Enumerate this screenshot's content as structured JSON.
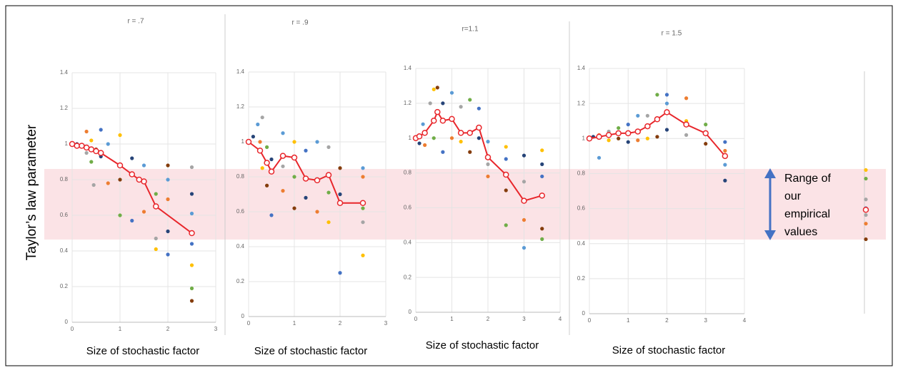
{
  "y_label": "Taylor’s law parameter",
  "annotation_lines": [
    "Range of",
    "our",
    "empirical",
    "values"
  ],
  "chart_data": [
    {
      "type": "scatter",
      "title": "r = .7",
      "x_label": "Size of stochastic factor",
      "xlim": [
        0,
        3
      ],
      "xticks": [
        0,
        1,
        2,
        3
      ],
      "ylim": [
        0,
        1.4
      ],
      "yticks": [
        0,
        0.2,
        0.4,
        0.6,
        0.8,
        1,
        1.2,
        1.4
      ],
      "grid": true,
      "palette": [
        "#264478",
        "#5b9bd5",
        "#ed7d31",
        "#a5a5a5",
        "#ffc000",
        "#70ad47",
        "#843c0c",
        "#4472c4"
      ],
      "points": {
        "x": [
          0.1,
          0.2,
          0.3,
          0.3,
          0.4,
          0.4,
          0.5,
          0.6,
          0.6,
          0.75,
          0.75,
          0.45,
          1,
          1,
          1,
          1.25,
          1.25,
          1.5,
          1.5,
          1.75,
          1.75,
          1.75,
          2,
          2,
          2,
          2,
          2,
          2.5,
          2.5,
          2.5,
          2.5,
          2.5,
          2.5,
          2.5
        ],
        "values": [
          1,
          0.99,
          1.07,
          0.95,
          1.02,
          0.9,
          0.97,
          1.08,
          0.93,
          1,
          0.78,
          0.77,
          1.05,
          0.6,
          0.8,
          0.57,
          0.92,
          0.88,
          0.62,
          0.47,
          0.41,
          0.72,
          0.88,
          0.38,
          0.51,
          0.8,
          0.69,
          0.87,
          0.32,
          0.19,
          0.12,
          0.44,
          0.72,
          0.61
        ]
      },
      "mean": {
        "color": "#e8262b",
        "x": [
          0,
          0.1,
          0.2,
          0.3,
          0.4,
          0.5,
          0.6,
          1,
          1.25,
          1.4,
          1.5,
          1.75,
          2.5
        ],
        "values": [
          1,
          0.99,
          0.99,
          0.98,
          0.97,
          0.96,
          0.95,
          0.88,
          0.83,
          0.8,
          0.79,
          0.65,
          0.5
        ]
      }
    },
    {
      "type": "scatter",
      "title": "r = .9",
      "x_label": "Size of stochastic factor",
      "xlim": [
        0,
        3
      ],
      "xticks": [
        0,
        1,
        2,
        3
      ],
      "ylim": [
        0,
        1.4
      ],
      "yticks": [
        0,
        0.2,
        0.4,
        0.6,
        0.8,
        1,
        1.2,
        1.4
      ],
      "grid": true,
      "palette": [
        "#264478",
        "#5b9bd5",
        "#ed7d31",
        "#a5a5a5",
        "#ffc000",
        "#70ad47",
        "#843c0c",
        "#4472c4"
      ],
      "points": {
        "x": [
          0.1,
          0.2,
          0.25,
          0.3,
          0.3,
          0.4,
          0.4,
          0.5,
          0.5,
          0.75,
          0.75,
          0.75,
          1,
          1,
          1,
          1.25,
          1.25,
          1.5,
          1.5,
          1.75,
          1.75,
          1.75,
          2,
          2,
          2,
          2.5,
          2.5,
          2.5,
          2.5,
          2.5
        ],
        "values": [
          1.03,
          1.1,
          1,
          1.14,
          0.85,
          0.97,
          0.75,
          0.58,
          0.9,
          1.05,
          0.72,
          0.86,
          1,
          0.8,
          0.62,
          0.95,
          0.68,
          1,
          0.6,
          0.97,
          0.54,
          0.71,
          0.85,
          0.25,
          0.7,
          0.85,
          0.8,
          0.54,
          0.35,
          0.62
        ]
      },
      "mean": {
        "color": "#e8262b",
        "x": [
          0,
          0.25,
          0.4,
          0.5,
          0.75,
          1,
          1.25,
          1.5,
          1.75,
          2,
          2.5
        ],
        "values": [
          1,
          0.95,
          0.88,
          0.83,
          0.92,
          0.91,
          0.79,
          0.78,
          0.81,
          0.65,
          0.65
        ]
      }
    },
    {
      "type": "scatter",
      "title": "r=1.1",
      "x_label": "Size of stochastic factor",
      "xlim": [
        0,
        4
      ],
      "xticks": [
        0,
        1,
        2,
        3,
        4
      ],
      "ylim": [
        0,
        1.4
      ],
      "yticks": [
        0,
        0.2,
        0.4,
        0.6,
        0.8,
        1,
        1.2,
        1.4
      ],
      "grid": true,
      "palette": [
        "#264478",
        "#5b9bd5",
        "#ed7d31",
        "#a5a5a5",
        "#ffc000",
        "#70ad47",
        "#843c0c",
        "#4472c4"
      ],
      "points": {
        "x": [
          0.1,
          0.2,
          0.25,
          0.4,
          0.5,
          0.5,
          0.6,
          0.75,
          0.75,
          1,
          1,
          1.25,
          1.25,
          1.5,
          1.5,
          1.75,
          1.75,
          2,
          2,
          2,
          2.5,
          2.5,
          2.5,
          2.5,
          3,
          3,
          3,
          3,
          3.5,
          3.5,
          3.5,
          3.5,
          3.5
        ],
        "values": [
          0.97,
          1.08,
          0.96,
          1.2,
          1.28,
          1,
          1.29,
          0.92,
          1.2,
          1.26,
          1,
          1.18,
          0.98,
          1.22,
          0.92,
          1.17,
          1,
          0.98,
          0.78,
          0.85,
          0.95,
          0.5,
          0.7,
          0.88,
          0.9,
          0.37,
          0.53,
          0.75,
          0.93,
          0.42,
          0.48,
          0.78,
          0.85
        ]
      },
      "mean": {
        "color": "#e8262b",
        "x": [
          0,
          0.1,
          0.25,
          0.5,
          0.6,
          0.75,
          1,
          1.25,
          1.5,
          1.75,
          2,
          2.5,
          3,
          3.5
        ],
        "values": [
          1,
          1.01,
          1.03,
          1.1,
          1.15,
          1.1,
          1.11,
          1.03,
          1.03,
          1.06,
          0.89,
          0.79,
          0.64,
          0.67
        ]
      }
    },
    {
      "type": "scatter",
      "title": "r = 1.5",
      "x_label": "Size of stochastic factor",
      "xlim": [
        0,
        4
      ],
      "xticks": [
        0,
        1,
        2,
        3,
        4
      ],
      "ylim": [
        0,
        1.4
      ],
      "yticks": [
        0,
        0.2,
        0.4,
        0.6,
        0.8,
        1,
        1.2,
        1.4
      ],
      "grid": true,
      "palette": [
        "#264478",
        "#5b9bd5",
        "#ed7d31",
        "#a5a5a5",
        "#ffc000",
        "#70ad47",
        "#843c0c",
        "#4472c4"
      ],
      "points": {
        "x": [
          0.1,
          0.25,
          0.25,
          0.5,
          0.5,
          0.75,
          0.75,
          1,
          1,
          1.25,
          1.25,
          1.5,
          1.5,
          1.75,
          1.75,
          2,
          2,
          2,
          2.5,
          2.5,
          2.5,
          3,
          3,
          3.5,
          3.5,
          3.5,
          3.5
        ],
        "values": [
          1.01,
          0.89,
          1.02,
          1.04,
          0.99,
          1.06,
          1,
          1.08,
          0.98,
          1.13,
          0.99,
          1.13,
          1,
          1.25,
          1.01,
          1.25,
          1.05,
          1.2,
          1.23,
          1.02,
          1.1,
          1.08,
          0.97,
          0.98,
          0.76,
          0.85,
          0.93
        ]
      },
      "mean": {
        "color": "#e8262b",
        "x": [
          0,
          0.25,
          0.5,
          0.75,
          1,
          1.25,
          1.5,
          1.75,
          2,
          2.5,
          3,
          3.5
        ],
        "values": [
          1,
          1.01,
          1.02,
          1.03,
          1.03,
          1.04,
          1.07,
          1.11,
          1.15,
          1.08,
          1.03,
          0.9
        ]
      }
    },
    {
      "type": "strip",
      "xlim": [
        -1,
        1
      ],
      "ylim": [
        0,
        1.4
      ],
      "palette": [
        "#ffc000",
        "#70ad47",
        "#a5a5a5",
        "#5b9bd5",
        "#a5a5a5",
        "#ed7d31",
        "#843c0c"
      ],
      "points": {
        "x": [
          0,
          0,
          0,
          0,
          0,
          0,
          0
        ],
        "values": [
          0.83,
          0.78,
          0.66,
          0.61,
          0.57,
          0.52,
          0.43
        ]
      },
      "mean": {
        "color": "#e8262b",
        "x": [
          0
        ],
        "values": [
          0.6
        ]
      }
    }
  ]
}
